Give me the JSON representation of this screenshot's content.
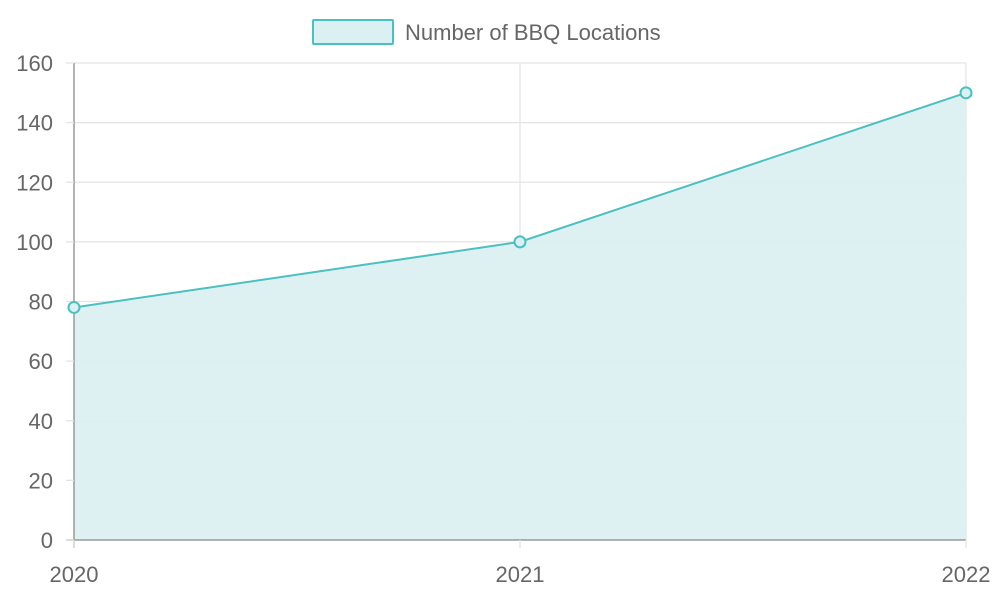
{
  "chart_data": {
    "type": "area",
    "x": [
      "2020",
      "2021",
      "2022"
    ],
    "series": [
      {
        "name": "Number of BBQ Locations",
        "values": [
          78,
          100,
          150
        ]
      }
    ],
    "ylim": [
      0,
      160
    ],
    "yticks": [
      0,
      20,
      40,
      60,
      80,
      100,
      120,
      140,
      160
    ],
    "grid": true,
    "legend_position": "top-center",
    "colors": {
      "line": "#4bc0c0",
      "fill": "#dbf0f2",
      "grid": "#e4e4e4",
      "axis": "#9a9a9a",
      "text": "#666666"
    }
  }
}
